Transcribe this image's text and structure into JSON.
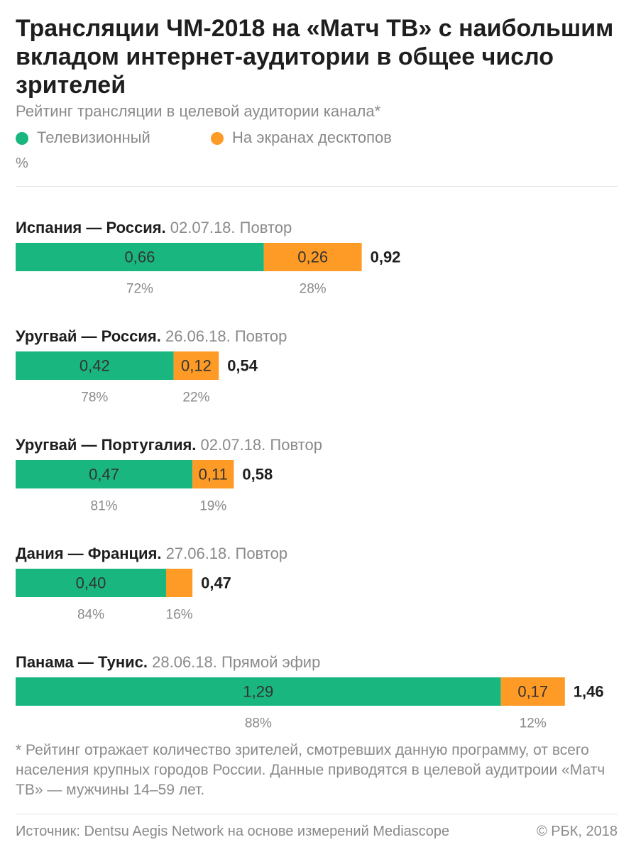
{
  "title": "Трансляции ЧМ-2018 на «Матч ТВ» с наибольшим вкладом интернет-аудитории в общее число зрителей",
  "subtitle": "Рейтинг трансляции в целевой аудитории канала*",
  "unit": "%",
  "legend": [
    {
      "label": "Телевизионный",
      "color": "#19b77f"
    },
    {
      "label": "На экранах десктопов",
      "color": "#fe9a26"
    }
  ],
  "chart_data": {
    "type": "bar",
    "orientation": "horizontal",
    "stacked": true,
    "categories": [
      {
        "name": "Испания — Россия.",
        "meta": "02.07.18. Повтор"
      },
      {
        "name": "Уругвай — Россия.",
        "meta": "26.06.18. Повтор"
      },
      {
        "name": "Уругвай — Португалия.",
        "meta": "02.07.18. Повтор"
      },
      {
        "name": "Дания — Франция.",
        "meta": "27.06.18. Повтор"
      },
      {
        "name": "Панама — Тунис.",
        "meta": "28.06.18. Прямой эфир"
      }
    ],
    "series": [
      {
        "name": "Телевизионный",
        "color": "#19b77f",
        "values": [
          0.66,
          0.42,
          0.47,
          0.4,
          1.29
        ],
        "value_labels": [
          "0,66",
          "0,42",
          "0,47",
          "0,40",
          "1,29"
        ],
        "percent_labels": [
          "72%",
          "78%",
          "81%",
          "84%",
          "88%"
        ]
      },
      {
        "name": "На экранах десктопов",
        "color": "#fe9a26",
        "values": [
          0.26,
          0.12,
          0.11,
          0.07,
          0.17
        ],
        "value_labels": [
          "0,26",
          "0,12",
          "0,11",
          "",
          "0,17"
        ],
        "percent_labels": [
          "28%",
          "22%",
          "19%",
          "16%",
          "12%"
        ]
      }
    ],
    "totals": [
      0.92,
      0.54,
      0.58,
      0.47,
      1.46
    ],
    "total_labels": [
      "0,92",
      "0,54",
      "0,58",
      "0,47",
      "1,46"
    ],
    "xlim": [
      0,
      1.46
    ],
    "grid": false,
    "legend_position": "top-left"
  },
  "footnote": "* Рейтинг отражает количество зрителей, смотревших данную программу, от всего населения крупных городов России. Данные приводятся в целевой аудитроии «Матч ТВ» — мужчины 14–59 лет.",
  "source": "Источник: Dentsu Aegis Network на основе измерений Mediascope",
  "copyright": "© РБК, 2018"
}
